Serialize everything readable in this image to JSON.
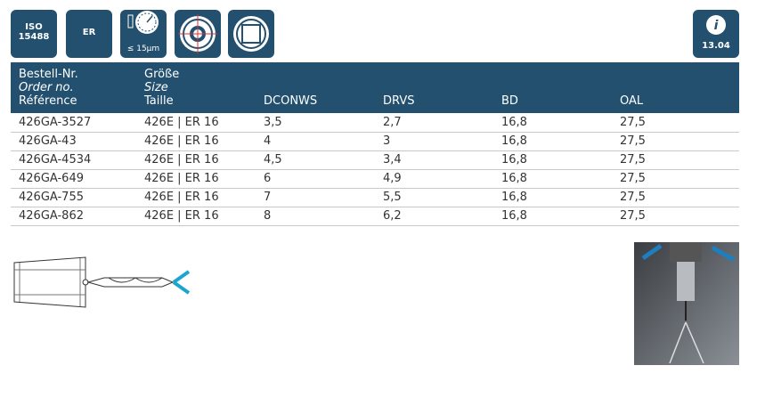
{
  "icons": {
    "iso": [
      "ISO",
      "15488"
    ],
    "er": "ER",
    "runout": "≤ 15µm",
    "info": "13.04"
  },
  "table": {
    "columns": [
      [
        "Bestell-Nr.",
        "Order no.",
        "Référence"
      ],
      [
        "Größe",
        "Size",
        "Taille"
      ],
      [
        "DCONWS"
      ],
      [
        "DRVS"
      ],
      [
        "BD"
      ],
      [
        "OAL"
      ]
    ],
    "rows": [
      [
        "426GA-3527",
        "426E | ER 16",
        "3,5",
        "2,7",
        "16,8",
        "27,5"
      ],
      [
        "426GA-43",
        "426E | ER 16",
        "4",
        "3",
        "16,8",
        "27,5"
      ],
      [
        "426GA-4534",
        "426E | ER 16",
        "4,5",
        "3,4",
        "16,8",
        "27,5"
      ],
      [
        "426GA-649",
        "426E | ER 16",
        "6",
        "4,9",
        "16,8",
        "27,5"
      ],
      [
        "426GA-755",
        "426E | ER 16",
        "7",
        "5,5",
        "16,8",
        "27,5"
      ],
      [
        "426GA-862",
        "426E | ER 16",
        "8",
        "6,2",
        "16,8",
        "27,5"
      ]
    ]
  }
}
